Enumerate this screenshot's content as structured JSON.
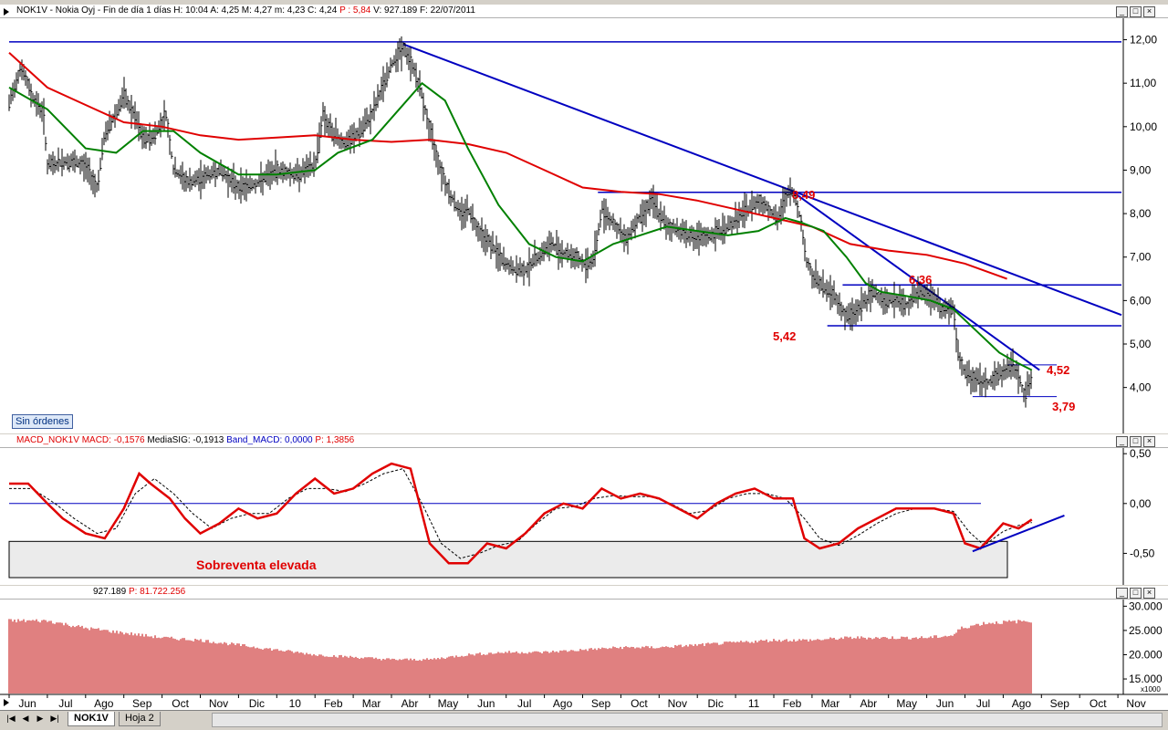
{
  "price_header": {
    "symbol": "NOK1V",
    "text": "NOK1V - Nokia Oyj - Fin de día 1 días  H: 10:04  A: 4,25  M: 4,27  m: 4,23  C: 4,24",
    "p_label": "P : 5,84",
    "tail": "V: 927.189  F: 22/07/2011"
  },
  "macd_header": {
    "name": "MACD_NOK1V",
    "macd": "MACD: -0,1576",
    "sig": "MediaSIG: -0,1913",
    "band": "Band_MACD: 0,0000",
    "p": "P: 1,3856"
  },
  "volume_header": {
    "vol": "927.189",
    "p": "P: 81.722.256"
  },
  "sin_ordenes": "Sin órdenes",
  "annotations": {
    "l849": "8,49",
    "l636": "6,36",
    "l542": "5,42",
    "l452": "4,52",
    "l379": "3,79",
    "oversold": "Sobreventa elevada"
  },
  "tabs": [
    "NOK1V",
    "Hoja 2"
  ],
  "colors": {
    "price": "#000000",
    "ma_short": "#008000",
    "ma_long": "#e00000",
    "trend": "#0000c0",
    "macd": "#e00000",
    "volume": "#c00000"
  },
  "chart_data": [
    {
      "type": "ohlc",
      "name": "price",
      "y_ticks": [
        "12,00",
        "11,00",
        "10,00",
        "9,00",
        "8,00",
        "7,00",
        "6,00",
        "5,00",
        "4,00"
      ],
      "ylim": [
        3.3,
        12.2
      ],
      "x_labels": [
        "Jun",
        "Jul",
        "Ago",
        "Sep",
        "Oct",
        "Nov",
        "Dic",
        "10",
        "Feb",
        "Mar",
        "Abr",
        "May",
        "Jun",
        "Jul",
        "Ago",
        "Sep",
        "Oct",
        "Nov",
        "Dic",
        "11",
        "Feb",
        "Mar",
        "Abr",
        "May",
        "Jun",
        "Jul",
        "Ago",
        "Sep",
        "Oct",
        "Nov"
      ],
      "close_path": [
        [
          0,
          10.5
        ],
        [
          0.3,
          11.4
        ],
        [
          0.6,
          10.7
        ],
        [
          0.9,
          10.3
        ],
        [
          1.0,
          9.1
        ],
        [
          1.5,
          9.2
        ],
        [
          2.0,
          9.1
        ],
        [
          2.3,
          8.6
        ],
        [
          2.5,
          9.8
        ],
        [
          3.0,
          10.7
        ],
        [
          3.3,
          10.2
        ],
        [
          3.5,
          9.7
        ],
        [
          3.8,
          9.8
        ],
        [
          4.1,
          10.3
        ],
        [
          4.3,
          9.0
        ],
        [
          4.7,
          8.7
        ],
        [
          5.0,
          8.8
        ],
        [
          5.5,
          9.0
        ],
        [
          6.0,
          8.6
        ],
        [
          6.5,
          8.7
        ],
        [
          7.0,
          9.0
        ],
        [
          7.5,
          8.9
        ],
        [
          8.0,
          9.1
        ],
        [
          8.2,
          10.3
        ],
        [
          8.4,
          9.9
        ],
        [
          8.8,
          9.6
        ],
        [
          9.2,
          9.9
        ],
        [
          9.5,
          10.3
        ],
        [
          9.8,
          11.0
        ],
        [
          10.1,
          11.6
        ],
        [
          10.3,
          11.8
        ],
        [
          10.6,
          11.3
        ],
        [
          10.8,
          10.7
        ],
        [
          11.0,
          9.9
        ],
        [
          11.3,
          9.0
        ],
        [
          11.5,
          8.5
        ],
        [
          11.8,
          8.0
        ],
        [
          12.0,
          8.1
        ],
        [
          12.3,
          7.6
        ],
        [
          12.6,
          7.3
        ],
        [
          12.9,
          6.9
        ],
        [
          13.2,
          6.7
        ],
        [
          13.5,
          6.7
        ],
        [
          13.8,
          7.0
        ],
        [
          14.2,
          7.3
        ],
        [
          14.5,
          7.1
        ],
        [
          14.8,
          7.0
        ],
        [
          15.1,
          6.8
        ],
        [
          15.3,
          7.0
        ],
        [
          15.5,
          8.1
        ],
        [
          15.8,
          7.8
        ],
        [
          16.1,
          7.4
        ],
        [
          16.4,
          7.8
        ],
        [
          16.8,
          8.3
        ],
        [
          17.2,
          7.7
        ],
        [
          17.6,
          7.6
        ],
        [
          18.0,
          7.4
        ],
        [
          18.4,
          7.5
        ],
        [
          18.8,
          7.7
        ],
        [
          19.2,
          8.0
        ],
        [
          19.6,
          8.3
        ],
        [
          19.9,
          8.1
        ],
        [
          20.1,
          7.8
        ],
        [
          20.3,
          8.4
        ],
        [
          20.5,
          8.5
        ],
        [
          20.7,
          7.9
        ],
        [
          20.85,
          6.9
        ],
        [
          21.0,
          6.6
        ],
        [
          21.3,
          6.3
        ],
        [
          21.6,
          6.1
        ],
        [
          21.9,
          5.6
        ],
        [
          22.2,
          5.8
        ],
        [
          22.6,
          6.2
        ],
        [
          22.9,
          6.0
        ],
        [
          23.2,
          6.0
        ],
        [
          23.5,
          5.9
        ],
        [
          23.8,
          6.2
        ],
        [
          24.1,
          6.1
        ],
        [
          24.4,
          5.8
        ],
        [
          24.7,
          5.8
        ],
        [
          24.8,
          4.8
        ],
        [
          25.0,
          4.3
        ],
        [
          25.3,
          4.2
        ],
        [
          25.6,
          4.1
        ],
        [
          25.9,
          4.3
        ],
        [
          26.2,
          4.5
        ],
        [
          26.4,
          4.3
        ],
        [
          26.55,
          3.8
        ],
        [
          26.75,
          4.24
        ]
      ],
      "ma_short_path": [
        [
          0,
          10.9
        ],
        [
          1,
          10.4
        ],
        [
          2,
          9.5
        ],
        [
          2.8,
          9.4
        ],
        [
          3.5,
          9.9
        ],
        [
          4.3,
          9.9
        ],
        [
          5.0,
          9.4
        ],
        [
          6.0,
          8.9
        ],
        [
          7.0,
          8.9
        ],
        [
          8.0,
          9.0
        ],
        [
          8.6,
          9.4
        ],
        [
          9.5,
          9.7
        ],
        [
          10.2,
          10.4
        ],
        [
          10.8,
          11.0
        ],
        [
          11.4,
          10.6
        ],
        [
          12.0,
          9.5
        ],
        [
          12.8,
          8.2
        ],
        [
          13.6,
          7.3
        ],
        [
          14.3,
          7.0
        ],
        [
          15.0,
          6.9
        ],
        [
          15.8,
          7.3
        ],
        [
          16.5,
          7.5
        ],
        [
          17.2,
          7.7
        ],
        [
          18.0,
          7.6
        ],
        [
          18.8,
          7.5
        ],
        [
          19.6,
          7.6
        ],
        [
          20.3,
          7.9
        ],
        [
          20.7,
          7.8
        ],
        [
          21.3,
          7.6
        ],
        [
          21.9,
          7.0
        ],
        [
          22.4,
          6.4
        ],
        [
          22.8,
          6.2
        ],
        [
          23.5,
          6.1
        ],
        [
          24.1,
          6.0
        ],
        [
          24.7,
          5.8
        ],
        [
          25.3,
          5.3
        ],
        [
          25.9,
          4.8
        ],
        [
          26.3,
          4.6
        ],
        [
          26.75,
          4.4
        ]
      ],
      "ma_long_path": [
        [
          0,
          11.7
        ],
        [
          1,
          10.9
        ],
        [
          2,
          10.5
        ],
        [
          3,
          10.1
        ],
        [
          4,
          10.0
        ],
        [
          5,
          9.8
        ],
        [
          6,
          9.7
        ],
        [
          7,
          9.75
        ],
        [
          8,
          9.8
        ],
        [
          9,
          9.7
        ],
        [
          10,
          9.65
        ],
        [
          11,
          9.7
        ],
        [
          12,
          9.6
        ],
        [
          13,
          9.4
        ],
        [
          14,
          9.0
        ],
        [
          15,
          8.6
        ],
        [
          16,
          8.5
        ],
        [
          17,
          8.45
        ],
        [
          18,
          8.3
        ],
        [
          19,
          8.1
        ],
        [
          20,
          7.9
        ],
        [
          21,
          7.7
        ],
        [
          22,
          7.3
        ],
        [
          23,
          7.15
        ],
        [
          24,
          7.05
        ],
        [
          25,
          6.85
        ],
        [
          26.1,
          6.5
        ]
      ],
      "lines": [
        {
          "kind": "horizontal",
          "y": 11.95,
          "x": [
            0,
            29.5
          ]
        },
        {
          "kind": "horizontal",
          "y": 8.49,
          "x": [
            15.4,
            29.5
          ],
          "label": "8,49"
        },
        {
          "kind": "horizontal",
          "y": 6.36,
          "x": [
            21.8,
            29.5
          ],
          "label": "6,36"
        },
        {
          "kind": "horizontal",
          "y": 5.42,
          "x": [
            21.4,
            29.5
          ],
          "label": "5,42"
        },
        {
          "kind": "horizontal",
          "y": 4.52,
          "x": [
            26.1,
            27.4
          ],
          "label": "4,52"
        },
        {
          "kind": "horizontal",
          "y": 3.79,
          "x": [
            25.2,
            27.4
          ],
          "label": "3,79"
        },
        {
          "kind": "trend",
          "from": [
            10.3,
            11.9
          ],
          "to": [
            29.6,
            5.5
          ]
        },
        {
          "kind": "trend",
          "from": [
            20.5,
            8.5
          ],
          "to": [
            26.95,
            4.4
          ]
        }
      ]
    },
    {
      "type": "line",
      "name": "macd",
      "y_ticks": [
        "0,50",
        "0,00",
        "-0,50"
      ],
      "ylim": [
        -0.78,
        0.52
      ],
      "macd_path": [
        [
          0,
          0.2
        ],
        [
          0.5,
          0.2
        ],
        [
          1.0,
          0.0
        ],
        [
          1.4,
          -0.15
        ],
        [
          2.0,
          -0.3
        ],
        [
          2.5,
          -0.35
        ],
        [
          3.0,
          -0.05
        ],
        [
          3.4,
          0.3
        ],
        [
          3.7,
          0.2
        ],
        [
          4.2,
          0.05
        ],
        [
          4.6,
          -0.15
        ],
        [
          5.0,
          -0.3
        ],
        [
          5.5,
          -0.2
        ],
        [
          6.0,
          -0.05
        ],
        [
          6.5,
          -0.15
        ],
        [
          7.0,
          -0.1
        ],
        [
          7.5,
          0.1
        ],
        [
          8.0,
          0.25
        ],
        [
          8.5,
          0.1
        ],
        [
          9.0,
          0.15
        ],
        [
          9.5,
          0.3
        ],
        [
          10.0,
          0.4
        ],
        [
          10.5,
          0.35
        ],
        [
          11.0,
          -0.4
        ],
        [
          11.5,
          -0.6
        ],
        [
          12.0,
          -0.6
        ],
        [
          12.5,
          -0.4
        ],
        [
          13.0,
          -0.45
        ],
        [
          13.5,
          -0.3
        ],
        [
          14.0,
          -0.1
        ],
        [
          14.5,
          0.0
        ],
        [
          15.0,
          -0.05
        ],
        [
          15.5,
          0.15
        ],
        [
          16.0,
          0.05
        ],
        [
          16.5,
          0.1
        ],
        [
          17.0,
          0.05
        ],
        [
          17.5,
          -0.05
        ],
        [
          18.0,
          -0.15
        ],
        [
          18.5,
          0.0
        ],
        [
          19.0,
          0.1
        ],
        [
          19.5,
          0.15
        ],
        [
          20.0,
          0.05
        ],
        [
          20.5,
          0.05
        ],
        [
          20.8,
          -0.35
        ],
        [
          21.2,
          -0.45
        ],
        [
          21.7,
          -0.4
        ],
        [
          22.2,
          -0.25
        ],
        [
          22.7,
          -0.15
        ],
        [
          23.2,
          -0.05
        ],
        [
          23.7,
          -0.05
        ],
        [
          24.2,
          -0.05
        ],
        [
          24.7,
          -0.1
        ],
        [
          25.0,
          -0.4
        ],
        [
          25.4,
          -0.45
        ],
        [
          26.0,
          -0.2
        ],
        [
          26.4,
          -0.25
        ],
        [
          26.75,
          -0.16
        ]
      ],
      "signal_path": [
        [
          0,
          0.15
        ],
        [
          0.6,
          0.15
        ],
        [
          1.2,
          0.0
        ],
        [
          1.7,
          -0.15
        ],
        [
          2.3,
          -0.3
        ],
        [
          2.8,
          -0.25
        ],
        [
          3.3,
          0.1
        ],
        [
          3.8,
          0.25
        ],
        [
          4.3,
          0.1
        ],
        [
          4.8,
          -0.1
        ],
        [
          5.3,
          -0.25
        ],
        [
          5.8,
          -0.15
        ],
        [
          6.3,
          -0.1
        ],
        [
          6.8,
          -0.1
        ],
        [
          7.3,
          0.05
        ],
        [
          7.8,
          0.15
        ],
        [
          8.3,
          0.15
        ],
        [
          8.8,
          0.12
        ],
        [
          9.3,
          0.2
        ],
        [
          9.8,
          0.3
        ],
        [
          10.3,
          0.35
        ],
        [
          10.8,
          0.0
        ],
        [
          11.3,
          -0.4
        ],
        [
          11.8,
          -0.55
        ],
        [
          12.3,
          -0.5
        ],
        [
          12.8,
          -0.42
        ],
        [
          13.3,
          -0.38
        ],
        [
          13.8,
          -0.2
        ],
        [
          14.3,
          -0.05
        ],
        [
          14.8,
          -0.03
        ],
        [
          15.3,
          0.05
        ],
        [
          15.8,
          0.08
        ],
        [
          16.3,
          0.07
        ],
        [
          16.8,
          0.07
        ],
        [
          17.3,
          0.0
        ],
        [
          17.8,
          -0.1
        ],
        [
          18.3,
          -0.07
        ],
        [
          18.8,
          0.05
        ],
        [
          19.3,
          0.1
        ],
        [
          19.8,
          0.1
        ],
        [
          20.3,
          0.05
        ],
        [
          20.8,
          -0.15
        ],
        [
          21.2,
          -0.35
        ],
        [
          21.7,
          -0.42
        ],
        [
          22.2,
          -0.32
        ],
        [
          22.7,
          -0.2
        ],
        [
          23.2,
          -0.1
        ],
        [
          23.7,
          -0.05
        ],
        [
          24.2,
          -0.05
        ],
        [
          24.7,
          -0.08
        ],
        [
          25.1,
          -0.28
        ],
        [
          25.5,
          -0.42
        ],
        [
          26.0,
          -0.28
        ],
        [
          26.4,
          -0.22
        ],
        [
          26.75,
          -0.19
        ]
      ],
      "zero_line": 0.0,
      "oversold_zone": [
        -0.38,
        -0.78
      ],
      "trend": {
        "from": [
          25.2,
          -0.48
        ],
        "to": [
          27.6,
          -0.12
        ]
      }
    },
    {
      "type": "bar",
      "name": "volume",
      "y_ticks": [
        "30.000",
        "25.000",
        "20.000",
        "15.000"
      ],
      "y_unit": "x1000",
      "ylim": [
        12000,
        31000
      ],
      "envelope": [
        [
          0,
          27000
        ],
        [
          1,
          27000
        ],
        [
          2,
          25500
        ],
        [
          3,
          24500
        ],
        [
          4,
          23500
        ],
        [
          5,
          23000
        ],
        [
          6,
          22000
        ],
        [
          7,
          21000
        ],
        [
          8,
          20000
        ],
        [
          9,
          19500
        ],
        [
          10,
          19000
        ],
        [
          11,
          19000
        ],
        [
          12,
          20000
        ],
        [
          13,
          20500
        ],
        [
          14,
          20500
        ],
        [
          15,
          21000
        ],
        [
          16,
          21500
        ],
        [
          17,
          21500
        ],
        [
          18,
          22000
        ],
        [
          19,
          22500
        ],
        [
          20,
          23000
        ],
        [
          21,
          23000
        ],
        [
          22,
          23500
        ],
        [
          23,
          23500
        ],
        [
          24,
          23500
        ],
        [
          24.7,
          24000
        ],
        [
          24.9,
          25500
        ],
        [
          25.5,
          26500
        ],
        [
          26.75,
          27000
        ]
      ]
    }
  ]
}
